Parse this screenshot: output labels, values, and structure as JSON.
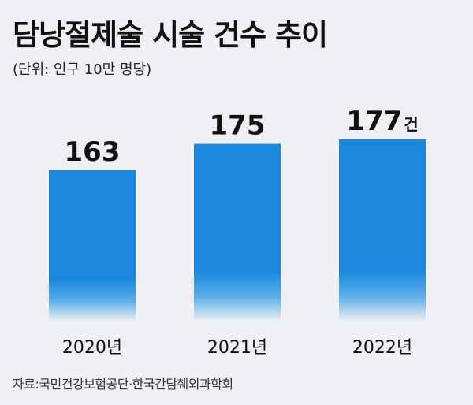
{
  "title": "담낭절제술 시술 건수 추이",
  "unit_note": "(단위: 인구 10만 명당)",
  "value_suffix": "건",
  "source": "자료:국민건강보험공단·한국간담췌외과학회",
  "colors": {
    "bar": "#1b88dd",
    "bar_fade": "#eef0f3",
    "background": "#eef0f3"
  },
  "chart_data": {
    "type": "bar",
    "title": "담낭절제술 시술 건수 추이",
    "categories": [
      "2020년",
      "2021년",
      "2022년"
    ],
    "values": [
      163,
      175,
      177
    ],
    "ylabel": "",
    "xlabel": "",
    "grid": false
  }
}
